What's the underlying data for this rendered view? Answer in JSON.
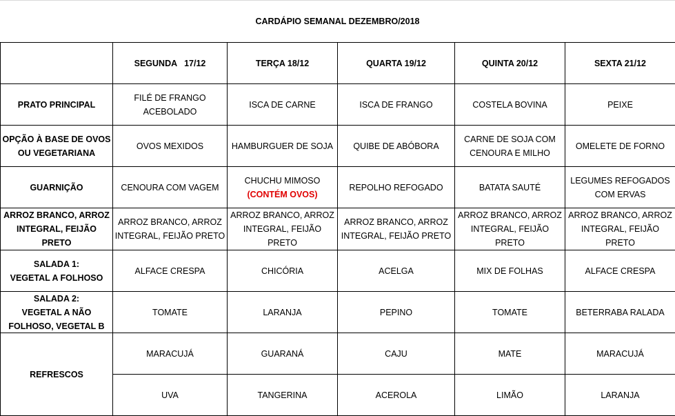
{
  "title": "CARDÁPIO SEMANAL DEZEMBRO/2018",
  "days": [
    "SEGUNDA   17/12",
    "TERÇA 18/12",
    "QUARTA 19/12",
    "QUINTA 20/12",
    "SEXTA 21/12"
  ],
  "rows": [
    {
      "label": [
        "PRATO PRINCIPAL"
      ],
      "cells": [
        [
          "FILÉ DE FRANGO",
          "ACEBOLADO"
        ],
        [
          "ISCA DE CARNE"
        ],
        [
          "ISCA DE FRANGO"
        ],
        [
          "COSTELA BOVINA"
        ],
        [
          "PEIXE"
        ]
      ]
    },
    {
      "label": [
        "OPÇÃO À BASE DE OVOS",
        "OU VEGETARIANA"
      ],
      "cells": [
        [
          "OVOS MEXIDOS"
        ],
        [
          "HAMBURGUER DE SOJA"
        ],
        [
          "QUIBE DE ABÓBORA"
        ],
        [
          "CARNE DE SOJA COM",
          "CENOURA E MILHO"
        ],
        [
          "OMELETE DE FORNO"
        ]
      ]
    },
    {
      "label": [
        "GUARNIÇÃO"
      ],
      "cells": [
        [
          "CENOURA COM VAGEM"
        ],
        [
          "CHUCHU MIMOSO"
        ],
        [
          "REPOLHO REFOGADO"
        ],
        [
          "BATATA SAUTÉ"
        ],
        [
          "LEGUMES REFOGADOS",
          "COM ERVAS"
        ]
      ],
      "note": {
        "day": 1,
        "text": "(CONTÉM OVOS)",
        "color": "#e00000"
      }
    },
    {
      "label": [
        "ARROZ BRANCO, ARROZ",
        "INTEGRAL, FEIJÃO PRETO"
      ],
      "cells": [
        [
          "ARROZ BRANCO, ARROZ",
          "INTEGRAL, FEIJÃO PRETO"
        ],
        [
          "ARROZ BRANCO, ARROZ",
          "INTEGRAL, FEIJÃO PRETO"
        ],
        [
          "ARROZ BRANCO, ARROZ",
          "INTEGRAL, FEIJÃO PRETO"
        ],
        [
          "ARROZ BRANCO, ARROZ",
          "INTEGRAL, FEIJÃO PRETO"
        ],
        [
          "ARROZ BRANCO, ARROZ",
          "INTEGRAL, FEIJÃO PRETO"
        ]
      ]
    },
    {
      "label": [
        "SALADA 1:",
        "VEGETAL A FOLHOSO"
      ],
      "cells": [
        [
          "ALFACE CRESPA"
        ],
        [
          "CHICÓRIA"
        ],
        [
          "ACELGA"
        ],
        [
          "MIX DE FOLHAS"
        ],
        [
          "ALFACE CRESPA"
        ]
      ]
    },
    {
      "label": [
        "SALADA 2:",
        "VEGETAL A NÃO",
        "FOLHOSO, VEGETAL B OU"
      ],
      "cells": [
        [
          "TOMATE"
        ],
        [
          "LARANJA"
        ],
        [
          "PEPINO"
        ],
        [
          "TOMATE"
        ],
        [
          "BETERRABA RALADA"
        ]
      ]
    }
  ],
  "refrescos": {
    "label": "REFRESCOS",
    "row1": [
      "MARACUJÁ",
      "GUARANÁ",
      "CAJU",
      "MATE",
      "MARACUJÁ"
    ],
    "row2": [
      "UVA",
      "TANGERINA",
      "ACEROLA",
      "LIMÃO",
      "LARANJA"
    ]
  }
}
